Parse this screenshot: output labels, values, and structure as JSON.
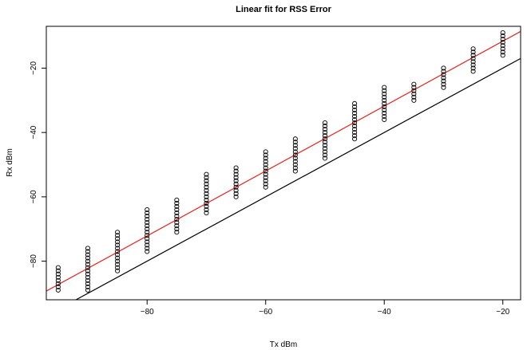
{
  "chart_data": {
    "type": "scatter",
    "title": "Linear fit for RSS Error",
    "xlabel": "Tx dBm",
    "ylabel": "Rx dBm",
    "xlim": [
      -97,
      -17
    ],
    "ylim": [
      -92,
      -7
    ],
    "xticks": [
      -80,
      -60,
      -40,
      -20
    ],
    "yticks": [
      -80,
      -60,
      -40,
      -20
    ],
    "grid": false,
    "series": [
      {
        "type": "scatter",
        "color": "#000000",
        "x": [
          -95,
          -95,
          -95,
          -95,
          -95,
          -95,
          -95,
          -95,
          -90,
          -90,
          -90,
          -90,
          -90,
          -90,
          -90,
          -90,
          -90,
          -90,
          -90,
          -90,
          -90,
          -90,
          -85,
          -85,
          -85,
          -85,
          -85,
          -85,
          -85,
          -85,
          -85,
          -85,
          -85,
          -85,
          -85,
          -80,
          -80,
          -80,
          -80,
          -80,
          -80,
          -80,
          -80,
          -80,
          -80,
          -80,
          -80,
          -80,
          -80,
          -75,
          -75,
          -75,
          -75,
          -75,
          -75,
          -75,
          -75,
          -75,
          -75,
          -75,
          -70,
          -70,
          -70,
          -70,
          -70,
          -70,
          -70,
          -70,
          -70,
          -70,
          -70,
          -70,
          -70,
          -65,
          -65,
          -65,
          -65,
          -65,
          -65,
          -65,
          -65,
          -65,
          -65,
          -60,
          -60,
          -60,
          -60,
          -60,
          -60,
          -60,
          -60,
          -60,
          -60,
          -60,
          -60,
          -55,
          -55,
          -55,
          -55,
          -55,
          -55,
          -55,
          -55,
          -55,
          -55,
          -55,
          -50,
          -50,
          -50,
          -50,
          -50,
          -50,
          -50,
          -50,
          -50,
          -50,
          -50,
          -50,
          -45,
          -45,
          -45,
          -45,
          -45,
          -45,
          -45,
          -45,
          -45,
          -45,
          -45,
          -45,
          -40,
          -40,
          -40,
          -40,
          -40,
          -40,
          -40,
          -40,
          -40,
          -40,
          -40,
          -35,
          -35,
          -35,
          -35,
          -35,
          -35,
          -30,
          -30,
          -30,
          -30,
          -30,
          -30,
          -30,
          -25,
          -25,
          -25,
          -25,
          -25,
          -25,
          -25,
          -25,
          -20,
          -20,
          -20,
          -20,
          -20,
          -20,
          -20,
          -20
        ],
        "y": [
          -82,
          -83,
          -84,
          -85,
          -86,
          -87,
          -88,
          -89,
          -76,
          -77,
          -78,
          -79,
          -80,
          -81,
          -82,
          -83,
          -84,
          -85,
          -86,
          -87,
          -88,
          -89,
          -71,
          -72,
          -73,
          -74,
          -75,
          -76,
          -77,
          -78,
          -79,
          -80,
          -81,
          -82,
          -83,
          -64,
          -65,
          -66,
          -67,
          -68,
          -69,
          -70,
          -71,
          -72,
          -73,
          -74,
          -75,
          -76,
          -77,
          -61,
          -62,
          -63,
          -64,
          -65,
          -66,
          -67,
          -68,
          -69,
          -70,
          -71,
          -53,
          -54,
          -55,
          -56,
          -57,
          -58,
          -59,
          -60,
          -61,
          -62,
          -63,
          -64,
          -65,
          -51,
          -52,
          -53,
          -54,
          -55,
          -56,
          -57,
          -58,
          -59,
          -60,
          -46,
          -47,
          -48,
          -49,
          -50,
          -51,
          -52,
          -53,
          -54,
          -55,
          -56,
          -57,
          -42,
          -43,
          -44,
          -45,
          -46,
          -47,
          -48,
          -49,
          -50,
          -51,
          -52,
          -37,
          -38,
          -39,
          -40,
          -41,
          -42,
          -43,
          -44,
          -45,
          -46,
          -47,
          -48,
          -31,
          -32,
          -33,
          -34,
          -35,
          -36,
          -37,
          -38,
          -39,
          -40,
          -41,
          -42,
          -26,
          -27,
          -28,
          -29,
          -30,
          -31,
          -32,
          -33,
          -34,
          -35,
          -36,
          -25,
          -26,
          -27,
          -28,
          -29,
          -30,
          -20,
          -21,
          -22,
          -23,
          -24,
          -25,
          -26,
          -14,
          -15,
          -16,
          -17,
          -18,
          -19,
          -20,
          -21,
          -9,
          -10,
          -11,
          -12,
          -13,
          -14,
          -15,
          -16
        ]
      },
      {
        "type": "line",
        "color": "#e8221d",
        "x": [
          -97,
          -17
        ],
        "y": [
          -89.3,
          -8.6
        ]
      },
      {
        "type": "line",
        "color": "#000000",
        "x": [
          -92,
          -17
        ],
        "y": [
          -92,
          -17
        ]
      }
    ]
  }
}
